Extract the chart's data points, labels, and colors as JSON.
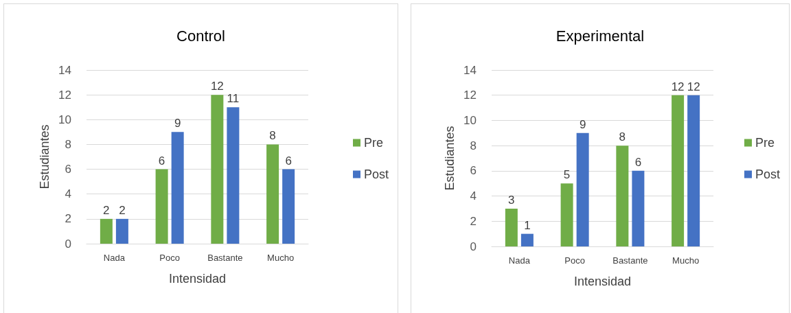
{
  "chart_data": [
    {
      "type": "bar",
      "title": "Control",
      "xlabel": "Intensidad",
      "ylabel": "Estudiantes",
      "categories": [
        "Nada",
        "Poco",
        "Bastante",
        "Mucho"
      ],
      "series": [
        {
          "name": "Pre",
          "color": "#70ad47",
          "values": [
            2,
            6,
            12,
            8
          ]
        },
        {
          "name": "Post",
          "color": "#4472c4",
          "values": [
            2,
            9,
            11,
            6
          ]
        }
      ],
      "ylim": [
        0,
        14
      ],
      "yticks": [
        0,
        2,
        4,
        6,
        8,
        10,
        12,
        14
      ],
      "grid": "y",
      "legend": "right",
      "data_labels": true
    },
    {
      "type": "bar",
      "title": "Experimental",
      "xlabel": "Intensidad",
      "ylabel": "Estudiantes",
      "categories": [
        "Nada",
        "Poco",
        "Bastante",
        "Mucho"
      ],
      "series": [
        {
          "name": "Pre",
          "color": "#70ad47",
          "values": [
            3,
            5,
            8,
            12
          ]
        },
        {
          "name": "Post",
          "color": "#4472c4",
          "values": [
            1,
            9,
            6,
            12
          ]
        }
      ],
      "ylim": [
        0,
        14
      ],
      "yticks": [
        0,
        2,
        4,
        6,
        8,
        10,
        12,
        14
      ],
      "grid": "y",
      "legend": "right",
      "data_labels": true
    }
  ]
}
